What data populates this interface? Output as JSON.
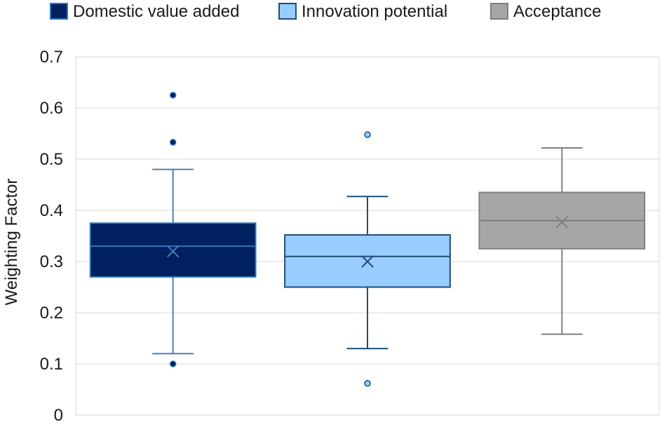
{
  "chart_data": {
    "type": "box",
    "title": "",
    "xlabel": "",
    "ylabel": "Weighting Factor",
    "ylim": [
      0,
      0.7
    ],
    "yticks": [
      "0",
      "0.1",
      "0.2",
      "0.3",
      "0.4",
      "0.5",
      "0.6",
      "0.7"
    ],
    "grid": true,
    "legend_position": "top",
    "series": [
      {
        "name": "Domestic value added",
        "fill": "#002060",
        "stroke": "#2e75b6",
        "whisker": "#4a7fb5",
        "whisker_low": 0.12,
        "q1": 0.27,
        "median": 0.33,
        "q3": 0.375,
        "whisker_high": 0.48,
        "mean": 0.32,
        "outliers": [
          0.625,
          0.533,
          0.1
        ]
      },
      {
        "name": "Innovation potential",
        "fill": "#99ccff",
        "stroke": "#1f4e79",
        "whisker": "#1f4e79",
        "whisker_low": 0.13,
        "q1": 0.25,
        "median": 0.31,
        "q3": 0.352,
        "whisker_high": 0.427,
        "mean": 0.3,
        "outliers": [
          0.548,
          0.062
        ]
      },
      {
        "name": "Acceptance",
        "fill": "#a6a6a6",
        "stroke": "#7f7f7f",
        "whisker": "#7f7f7f",
        "whisker_low": 0.158,
        "q1": 0.325,
        "median": 0.38,
        "q3": 0.435,
        "whisker_high": 0.522,
        "mean": 0.377,
        "outliers": []
      }
    ]
  }
}
